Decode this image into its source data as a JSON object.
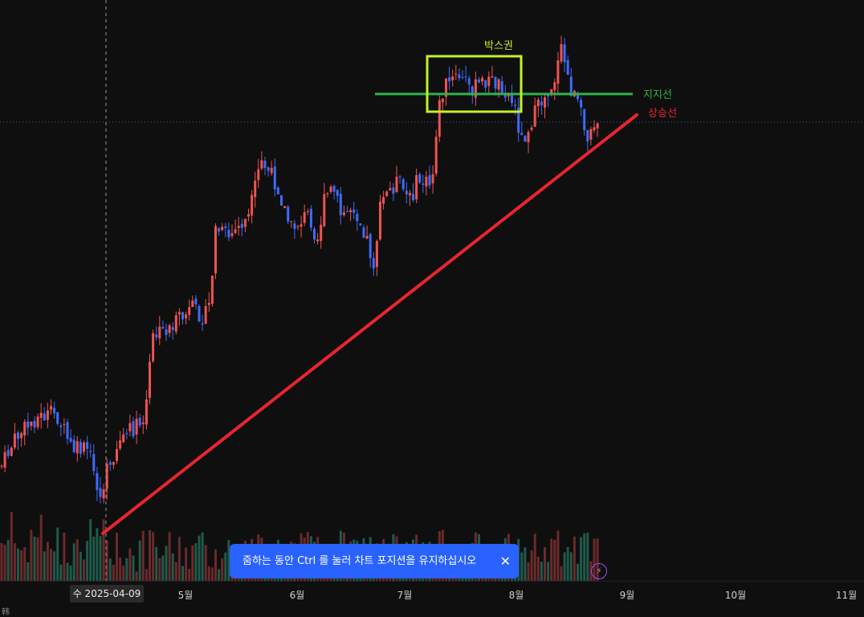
{
  "chart_data": {
    "type": "candlestick",
    "x_axis_labels": [
      "5월",
      "6월",
      "7월",
      "8월",
      "9월",
      "10월",
      "11월"
    ],
    "crosshair_date": "수 2025-04-09",
    "annotations": {
      "box_label": "박스권",
      "support_label": "지지선",
      "uptrend_label": "상승선"
    },
    "colors": {
      "up": "#ef5350",
      "down": "#3d6bff",
      "support": "#2fb34a",
      "uptrend": "#e8252f",
      "box": "#c4f02a",
      "volume_up": "#6b2a2a",
      "volume_down": "#1f5a4a"
    }
  },
  "toast": {
    "message": "줌하는 동안 Ctrl 를 눌러 차트 포지션을 유지하십시오",
    "close": "✕"
  },
  "bottom_strip": {
    "text": "韩"
  },
  "lightning_icon": "⚡"
}
